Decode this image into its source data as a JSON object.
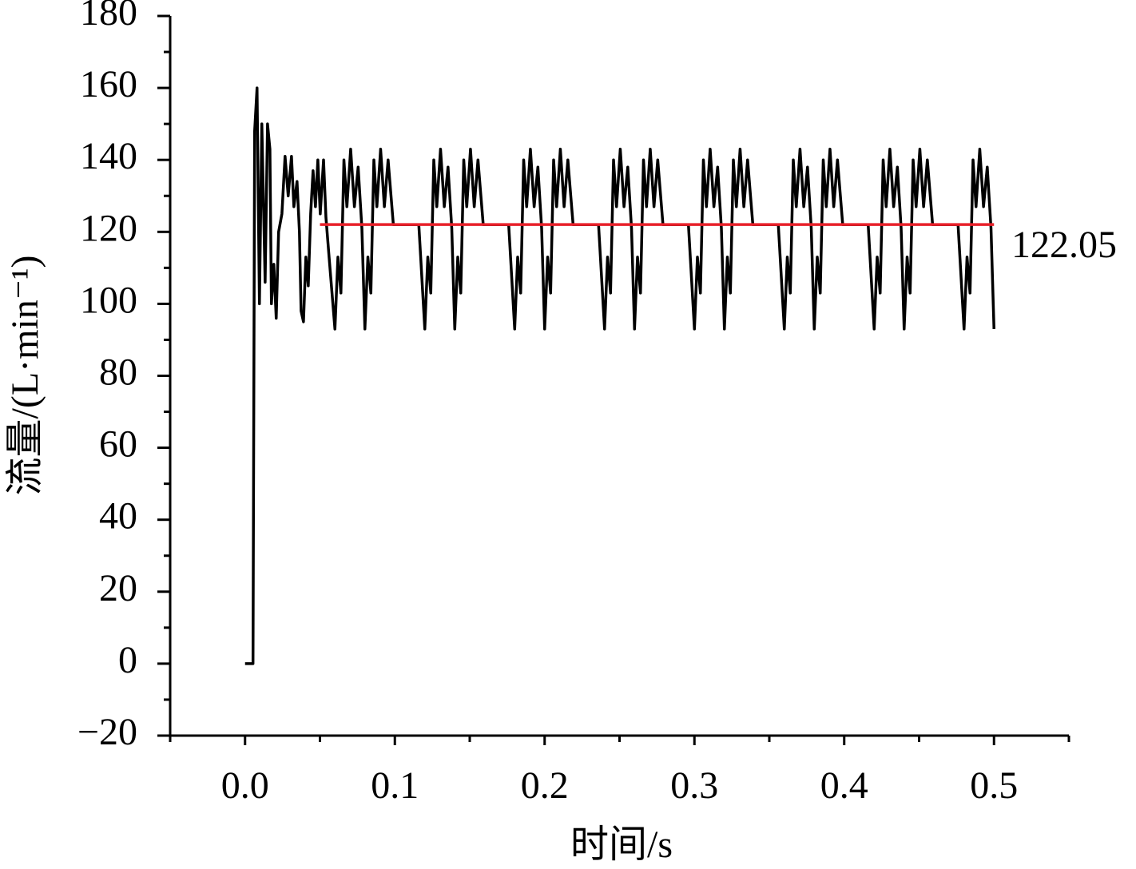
{
  "chart_data": {
    "type": "line",
    "xlabel": "时间/s",
    "ylabel": "流量/(L·min⁻¹)",
    "xlim": [
      -0.05,
      0.55
    ],
    "ylim": [
      -20,
      180
    ],
    "xticks": [
      {
        "value": 0,
        "label": "0.0"
      },
      0.1,
      0.2,
      0.3,
      0.4,
      0.5
    ],
    "xminorticks": [
      -0.05,
      0.05,
      0.15,
      0.25,
      0.35,
      0.45,
      0.55
    ],
    "yticks": [
      {
        "value": -20,
        "label": "−20"
      },
      0,
      20,
      40,
      60,
      80,
      100,
      120,
      140,
      160,
      180
    ],
    "yminorticks": [
      -10,
      10,
      30,
      50,
      70,
      90,
      110,
      130,
      150,
      170
    ],
    "color": "#000000",
    "x": [
      0,
      0.0053,
      0.0064,
      0.008,
      0.0096,
      0.0112,
      0.0134,
      0.015,
      0.0166,
      0.0176,
      0.0192,
      0.0208,
      0.0224,
      0.0246,
      0.0267,
      0.0288,
      0.031,
      0.0326,
      0.0347,
      0.0363,
      0.0374,
      0.039,
      0.0406,
      0.0422,
      0.0438,
      0.0454,
      0.047,
      0.0486,
      0.0502,
      0.0524,
      0.054,
      0.0561,
      0.06,
      0.062,
      0.064,
      0.066,
      0.068,
      0.0705,
      0.073,
      0.0755,
      0.078,
      0.08,
      0.082,
      0.084,
      0.086,
      0.088,
      0.0905,
      0.093,
      0.0955,
      0.099,
      0.109,
      0.116,
      0.12,
      0.122,
      0.124,
      0.126,
      0.128,
      0.1305,
      0.133,
      0.1355,
      0.138,
      0.14,
      0.142,
      0.144,
      0.146,
      0.148,
      0.1505,
      0.153,
      0.1555,
      0.159,
      0.169,
      0.176,
      0.18,
      0.182,
      0.184,
      0.186,
      0.188,
      0.1905,
      0.193,
      0.1955,
      0.198,
      0.2,
      0.202,
      0.204,
      0.206,
      0.208,
      0.2105,
      0.213,
      0.2155,
      0.219,
      0.229,
      0.236,
      0.24,
      0.242,
      0.244,
      0.246,
      0.248,
      0.2505,
      0.253,
      0.2555,
      0.258,
      0.26,
      0.262,
      0.264,
      0.266,
      0.268,
      0.2705,
      0.273,
      0.2755,
      0.279,
      0.289,
      0.296,
      0.3,
      0.302,
      0.304,
      0.306,
      0.308,
      0.3105,
      0.313,
      0.3155,
      0.318,
      0.32,
      0.322,
      0.324,
      0.326,
      0.328,
      0.3305,
      0.333,
      0.3355,
      0.339,
      0.349,
      0.356,
      0.36,
      0.362,
      0.364,
      0.366,
      0.368,
      0.3705,
      0.373,
      0.3755,
      0.378,
      0.38,
      0.382,
      0.384,
      0.386,
      0.388,
      0.3905,
      0.393,
      0.3955,
      0.399,
      0.409,
      0.416,
      0.42,
      0.422,
      0.424,
      0.426,
      0.428,
      0.4305,
      0.433,
      0.4355,
      0.438,
      0.44,
      0.442,
      0.444,
      0.446,
      0.448,
      0.4505,
      0.453,
      0.4555,
      0.459,
      0.469,
      0.476,
      0.48,
      0.482,
      0.484,
      0.486,
      0.488,
      0.4905,
      0.493,
      0.4955,
      0.498,
      0.5
    ],
    "values": [
      0,
      0,
      148,
      160,
      100,
      150,
      106,
      150,
      143,
      100,
      111,
      96,
      120,
      125,
      141,
      130,
      141,
      127,
      134,
      120,
      98,
      95,
      113,
      105,
      125,
      137,
      127,
      140,
      125,
      140,
      124,
      113,
      93,
      113,
      103,
      140,
      127,
      143,
      127,
      138,
      121,
      93,
      113,
      103,
      140,
      127,
      143,
      127,
      140,
      122,
      122,
      122,
      93,
      113,
      103,
      140,
      127,
      143,
      127,
      138,
      121,
      93,
      113,
      103,
      140,
      127,
      143,
      127,
      140,
      122,
      122,
      122,
      93,
      113,
      103,
      140,
      127,
      143,
      127,
      138,
      121,
      93,
      113,
      103,
      140,
      127,
      143,
      127,
      140,
      122,
      122,
      122,
      93,
      113,
      103,
      140,
      127,
      143,
      127,
      138,
      121,
      93,
      113,
      103,
      140,
      127,
      143,
      127,
      140,
      122,
      122,
      122,
      93,
      113,
      103,
      140,
      127,
      143,
      127,
      138,
      121,
      93,
      113,
      103,
      140,
      127,
      143,
      127,
      140,
      122,
      122,
      122,
      93,
      113,
      103,
      140,
      127,
      143,
      127,
      138,
      121,
      93,
      113,
      103,
      140,
      127,
      143,
      127,
      140,
      122,
      122,
      122,
      93,
      113,
      103,
      140,
      127,
      143,
      127,
      138,
      121,
      93,
      113,
      103,
      140,
      127,
      143,
      127,
      140,
      122,
      122,
      122,
      93,
      113,
      103,
      140,
      127,
      143,
      127,
      138,
      121,
      93
    ],
    "mean": {
      "value": 122.05,
      "xlim": [
        0.05,
        0.5
      ],
      "color": "#e8202a"
    }
  }
}
